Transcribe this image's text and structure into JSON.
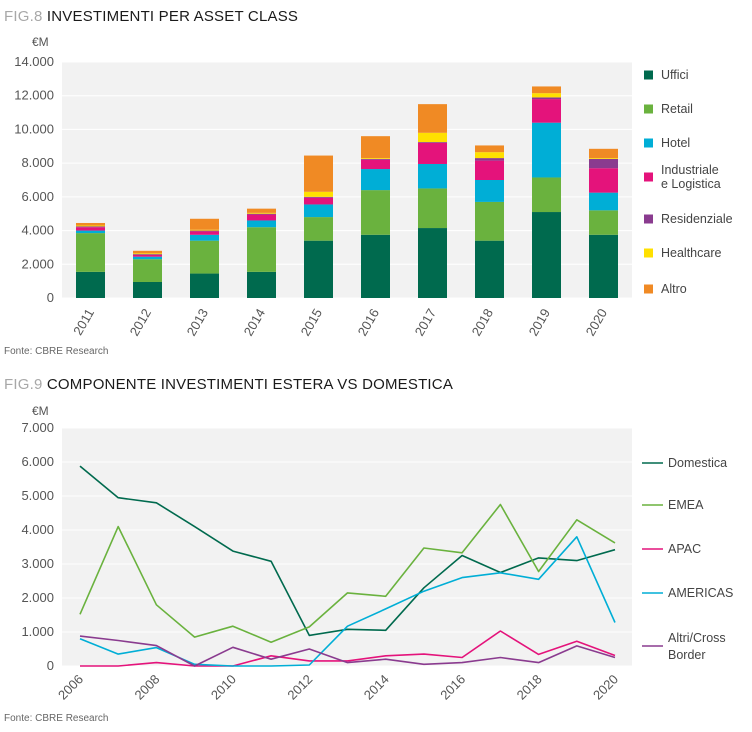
{
  "fig8": {
    "label": "FIG.8",
    "title": "INVESTIMENTI PER ASSET CLASS",
    "unit": "€M",
    "source": "Fonte: CBRE Research"
  },
  "fig9": {
    "label": "FIG.9",
    "title": "COMPONENTE INVESTIMENTI ESTERA VS DOMESTICA",
    "unit": "€M",
    "source": "Fonte: CBRE Research"
  },
  "chart_data": [
    {
      "type": "bar",
      "stacked": true,
      "title": "INVESTIMENTI PER ASSET CLASS",
      "ylabel": "€M",
      "ylim": [
        0,
        14000
      ],
      "yticks": [
        0,
        2000,
        4000,
        6000,
        8000,
        10000,
        12000,
        14000
      ],
      "ytick_labels": [
        "0",
        "2.000",
        "4.000",
        "6.000",
        "8.000",
        "10.000",
        "12.000",
        "14.000"
      ],
      "grid": true,
      "legend_position": "right",
      "categories": [
        "2011",
        "2012",
        "2013",
        "2014",
        "2015",
        "2016",
        "2017",
        "2018",
        "2019",
        "2020"
      ],
      "series": [
        {
          "name": "Uffici",
          "color": "#006a4e",
          "values": [
            1550,
            950,
            1450,
            1550,
            3400,
            3750,
            4150,
            3400,
            5100,
            3750
          ]
        },
        {
          "name": "Retail",
          "color": "#6ab23e",
          "values": [
            2300,
            1350,
            1950,
            2650,
            1400,
            2650,
            2350,
            2300,
            2050,
            1450
          ]
        },
        {
          "name": "Hotel",
          "color": "#00aed6",
          "values": [
            150,
            150,
            350,
            400,
            750,
            1250,
            1450,
            1300,
            3250,
            1050
          ]
        },
        {
          "name": "Industriale\ne Logistica",
          "color": "#e4137b",
          "values": [
            200,
            100,
            200,
            350,
            400,
            550,
            1250,
            1150,
            1400,
            1450
          ]
        },
        {
          "name": "Residenziale",
          "color": "#8a3b8f",
          "values": [
            50,
            50,
            50,
            50,
            50,
            50,
            50,
            150,
            100,
            550
          ]
        },
        {
          "name": "Healthcare",
          "color": "#ffe000",
          "values": [
            50,
            50,
            50,
            50,
            300,
            50,
            550,
            350,
            250,
            50
          ]
        },
        {
          "name": "Altro",
          "color": "#f08a24",
          "values": [
            150,
            150,
            650,
            250,
            2150,
            1300,
            1700,
            400,
            400,
            550
          ]
        }
      ]
    },
    {
      "type": "line",
      "title": "COMPONENTE INVESTIMENTI ESTERA VS DOMESTICA",
      "ylabel": "€M",
      "ylim": [
        0,
        7000
      ],
      "yticks": [
        0,
        1000,
        2000,
        3000,
        4000,
        5000,
        6000,
        7000
      ],
      "ytick_labels": [
        "0",
        "1.000",
        "2.000",
        "3.000",
        "4.000",
        "5.000",
        "6.000",
        "7.000"
      ],
      "grid": true,
      "legend_position": "right",
      "x": [
        2006,
        2007,
        2008,
        2009,
        2010,
        2011,
        2012,
        2013,
        2014,
        2015,
        2016,
        2017,
        2018,
        2019,
        2020
      ],
      "xtick_labels": [
        "2006",
        "2008",
        "2010",
        "2012",
        "2014",
        "2016",
        "2018",
        "2020"
      ],
      "xlim": [
        2006,
        2020
      ],
      "series": [
        {
          "name": "Domestica",
          "color": "#006a4e",
          "values": [
            5880,
            4950,
            4800,
            4100,
            3380,
            3080,
            900,
            1080,
            1050,
            2300,
            3250,
            2750,
            3180,
            3100,
            3420
          ]
        },
        {
          "name": "EMEA",
          "color": "#6ab23e",
          "values": [
            1520,
            4100,
            1800,
            850,
            1170,
            700,
            1150,
            2150,
            2050,
            3470,
            3330,
            4750,
            2780,
            4300,
            3620
          ]
        },
        {
          "name": "APAC",
          "color": "#e4137b",
          "values": [
            0,
            0,
            100,
            0,
            0,
            300,
            150,
            150,
            300,
            350,
            250,
            1030,
            340,
            730,
            310
          ]
        },
        {
          "name": "AMERICAS",
          "color": "#00aed6",
          "values": [
            800,
            350,
            540,
            50,
            0,
            0,
            30,
            1170,
            1680,
            2200,
            2600,
            2740,
            2550,
            3800,
            1280
          ]
        },
        {
          "name": "Altri/Cross\nBorder",
          "color": "#8a3b8f",
          "values": [
            880,
            750,
            600,
            0,
            550,
            200,
            500,
            100,
            200,
            50,
            100,
            250,
            100,
            590,
            250
          ]
        }
      ]
    }
  ]
}
